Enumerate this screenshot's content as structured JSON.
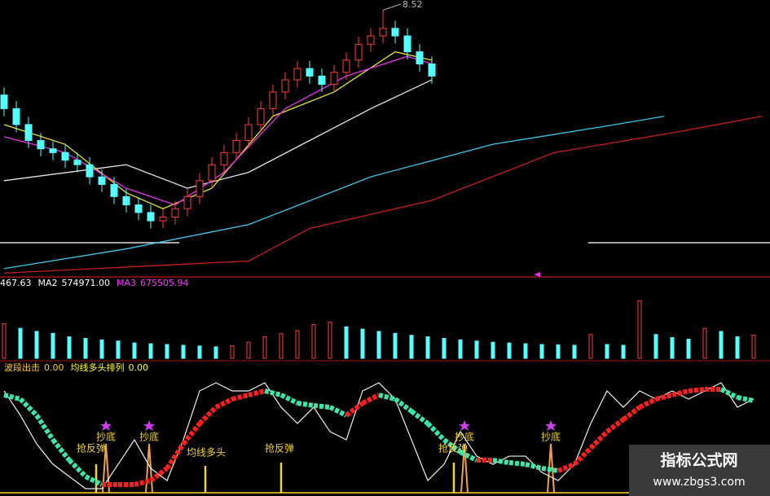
{
  "chart_data": [
    {
      "type": "candlestick",
      "open": [
        7.4,
        7.22,
        7.01,
        6.8,
        6.69,
        6.64,
        6.54,
        6.48,
        6.32,
        6.22,
        6.06,
        5.95,
        5.85,
        5.74,
        5.79,
        5.9,
        6.06,
        6.27,
        6.48,
        6.64,
        6.8,
        7.01,
        7.22,
        7.44,
        7.6,
        7.75,
        7.65,
        7.54,
        7.7,
        7.86,
        8.07,
        8.18,
        8.28,
        8.18,
        7.97,
        7.81
      ],
      "high": [
        7.5,
        7.32,
        7.11,
        6.9,
        6.79,
        6.74,
        6.64,
        6.58,
        6.42,
        6.32,
        6.16,
        6.05,
        5.95,
        5.89,
        6.0,
        6.16,
        6.37,
        6.58,
        6.74,
        6.9,
        7.11,
        7.32,
        7.54,
        7.7,
        7.85,
        7.85,
        7.75,
        7.8,
        7.96,
        8.17,
        8.28,
        8.52,
        8.38,
        8.28,
        8.07,
        7.91
      ],
      "low": [
        7.12,
        6.91,
        6.7,
        6.59,
        6.54,
        6.44,
        6.38,
        6.22,
        6.12,
        5.96,
        5.85,
        5.75,
        5.64,
        5.64,
        5.69,
        5.8,
        5.96,
        6.17,
        6.38,
        6.54,
        6.7,
        6.91,
        7.12,
        7.34,
        7.5,
        7.55,
        7.44,
        7.44,
        7.6,
        7.76,
        7.97,
        8.08,
        8.08,
        7.87,
        7.71,
        7.55
      ],
      "close": [
        7.22,
        7.01,
        6.8,
        6.69,
        6.64,
        6.54,
        6.48,
        6.32,
        6.22,
        6.06,
        5.95,
        5.85,
        5.74,
        5.79,
        5.9,
        6.06,
        6.27,
        6.48,
        6.64,
        6.8,
        7.01,
        7.22,
        7.44,
        7.6,
        7.75,
        7.65,
        7.54,
        7.7,
        7.86,
        8.07,
        8.18,
        8.28,
        8.18,
        7.97,
        7.81,
        7.65
      ],
      "ylim": [
        5,
        8.6
      ],
      "up_color": "#ff3c3c",
      "down_color": "#54ffff",
      "lines": [
        {
          "color": "#3cc8e6",
          "x": [
            0,
            10,
            20,
            30,
            40,
            50,
            54
          ],
          "values": [
            5.11,
            5.37,
            5.69,
            6.32,
            6.75,
            7.01,
            7.12
          ]
        },
        {
          "color": "#c81e1e",
          "x": [
            0,
            20,
            25,
            35,
            45,
            55,
            62
          ],
          "values": [
            5.05,
            5.21,
            5.64,
            6.01,
            6.64,
            6.91,
            7.12
          ]
        },
        {
          "color": "#e6e6e6",
          "x": [
            0,
            10,
            15,
            20,
            25,
            30,
            35
          ],
          "values": [
            6.27,
            6.48,
            6.17,
            6.38,
            6.8,
            7.22,
            7.6
          ]
        },
        {
          "color": "#e6e632",
          "x": [
            0,
            5,
            10,
            13,
            17,
            22,
            27,
            32,
            35
          ],
          "values": [
            7.01,
            6.75,
            6.11,
            5.9,
            6.17,
            7.12,
            7.44,
            7.97,
            7.86
          ]
        },
        {
          "color": "#e632e6",
          "x": [
            0,
            5,
            10,
            14,
            18,
            23,
            28,
            33,
            35
          ],
          "values": [
            6.85,
            6.64,
            6.17,
            5.95,
            6.38,
            7.22,
            7.65,
            7.91,
            7.81
          ]
        }
      ]
    },
    {
      "type": "bar",
      "header": [
        {
          "value": 467.63
        },
        {
          "name": "MA2",
          "value": 574971,
          "label": "574971.00"
        },
        {
          "name": "MA3",
          "value": 675505.94,
          "color": "#ff33ff"
        }
      ],
      "values": [
        900000,
        780000,
        700000,
        650000,
        560000,
        520000,
        480000,
        450000,
        400000,
        380000,
        360000,
        340000,
        320000,
        300000,
        330000,
        420000,
        560000,
        640000,
        720000,
        880000,
        940000,
        820000,
        760000,
        700000,
        650000,
        600000,
        560000,
        520000,
        480000,
        450000,
        420000,
        400000,
        380000,
        360000,
        350000,
        340000,
        620000,
        360000,
        340000,
        1500000,
        620000,
        540000,
        500000,
        780000,
        700000,
        560000,
        600000
      ],
      "ylim": [
        0,
        1800000
      ],
      "up_color": "#ff3c3c",
      "down_color": "#54ffff"
    },
    {
      "type": "line",
      "header": [
        {
          "name": "波段出击",
          "value": 0,
          "label": "0.00",
          "color": "#ffcc33"
        },
        {
          "name": "均线多头排列",
          "value": 0,
          "label": "0.00",
          "color": "#ffff33"
        }
      ],
      "ylim": [
        0,
        100
      ],
      "lines": [
        {
          "color": "#f0f0f0",
          "values": [
            92.6,
            70.4,
            44.4,
            25.9,
            14.8,
            3.7,
            3.7,
            25.9,
            48.1,
            22.2,
            11.1,
            48.1,
            92.6,
            100,
            92.6,
            92.6,
            100,
            77.8,
            63.0,
            77.8,
            55.6,
            48.1,
            92.6,
            100,
            85.2,
            48.1,
            11.1,
            25.9,
            55.6,
            33.3,
            25.9,
            33.3,
            33.3,
            18.5,
            11.1,
            25.9,
            63.0,
            92.6,
            77.8,
            92.6,
            85.2,
            92.6,
            85.2,
            92.6,
            100,
            77.8,
            85.2
          ]
        },
        {
          "up_color": "#ff1e1e",
          "down_color": "#3ce6aa",
          "values": [
            88.9,
            85.2,
            70.4,
            48.1,
            29.6,
            14.8,
            7.4,
            7.4,
            7.4,
            11.1,
            22.2,
            44.4,
            63.0,
            77.8,
            85.2,
            88.9,
            92.6,
            88.9,
            81.5,
            79.3,
            77.8,
            70.4,
            81.5,
            88.9,
            85.2,
            74.1,
            63.0,
            48.1,
            37.0,
            29.6,
            29.6,
            27.4,
            25.9,
            22.2,
            20.0,
            25.9,
            40.7,
            55.6,
            66.7,
            77.8,
            85.2,
            88.9,
            92.6,
            94.1,
            94.1,
            86.7,
            83.7
          ]
        }
      ],
      "annotations": [
        "抄底",
        "抄底",
        "抢反弹",
        "均线多头",
        "抢反弹",
        "抄底",
        "抢反弹",
        "抄底"
      ]
    }
  ],
  "watermark": {
    "title": "指标公式网",
    "url": "www.zbgs3.com"
  }
}
